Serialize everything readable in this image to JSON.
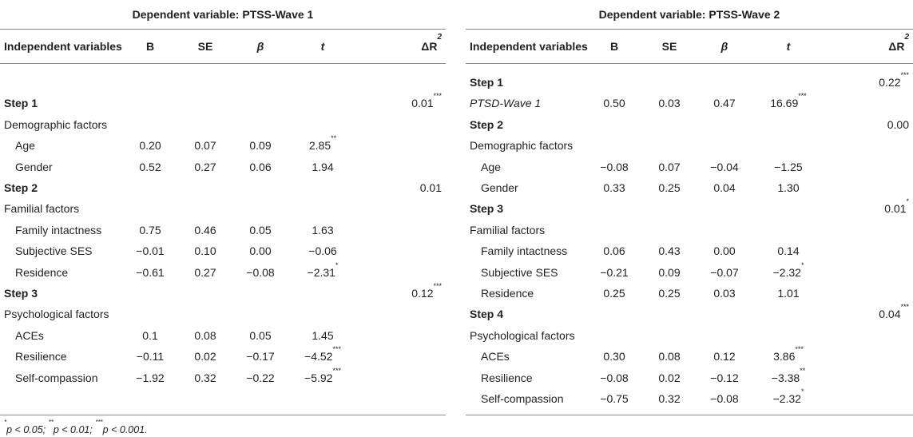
{
  "left": {
    "title": "Dependent variable: PTSS-Wave 1",
    "columns": {
      "iv": "Independent variables",
      "b": "B",
      "se": "SE",
      "beta": "β",
      "t": "t",
      "dr": "ΔR",
      "dr_sup": "2"
    },
    "rows": [
      {
        "type": "blank"
      },
      {
        "type": "step",
        "label": "Step 1",
        "dr": "0.01",
        "dr_sig": "***"
      },
      {
        "type": "group",
        "label": "Demographic factors"
      },
      {
        "type": "var",
        "label": "Age",
        "b": "0.20",
        "se": "0.07",
        "beta": "0.09",
        "t": "2.85",
        "t_sig": "**"
      },
      {
        "type": "var",
        "label": "Gender",
        "b": "0.52",
        "se": "0.27",
        "beta": "0.06",
        "t": "1.94",
        "t_sig": ""
      },
      {
        "type": "step",
        "label": "Step 2",
        "dr": "0.01",
        "dr_sig": ""
      },
      {
        "type": "group",
        "label": "Familial factors"
      },
      {
        "type": "var",
        "label": "Family intactness",
        "b": "0.75",
        "se": "0.46",
        "beta": "0.05",
        "t": "1.63",
        "t_sig": ""
      },
      {
        "type": "var",
        "label": "Subjective SES",
        "b": "−0.01",
        "se": "0.10",
        "beta": "0.00",
        "t": "−0.06",
        "t_sig": ""
      },
      {
        "type": "var",
        "label": "Residence",
        "b": "−0.61",
        "se": "0.27",
        "beta": "−0.08",
        "t": "−2.31",
        "t_sig": "*"
      },
      {
        "type": "step",
        "label": "Step 3",
        "dr": "0.12",
        "dr_sig": "***"
      },
      {
        "type": "group",
        "label": "Psychological factors"
      },
      {
        "type": "var",
        "label": "ACEs",
        "b": "0.1",
        "se": "0.08",
        "beta": "0.05",
        "t": "1.45",
        "t_sig": ""
      },
      {
        "type": "var",
        "label": "Resilience",
        "b": "−0.11",
        "se": "0.02",
        "beta": "−0.17",
        "t": "−4.52",
        "t_sig": "***"
      },
      {
        "type": "var",
        "label": "Self-compassion",
        "b": "−1.92",
        "se": "0.32",
        "beta": "−0.22",
        "t": "−5.92",
        "t_sig": "***"
      }
    ]
  },
  "right": {
    "title": "Dependent variable: PTSS-Wave 2",
    "columns": {
      "iv": "Independent variables",
      "b": "B",
      "se": "SE",
      "beta": "β",
      "t": "t",
      "dr": "ΔR",
      "dr_sup": "2"
    },
    "rows": [
      {
        "type": "step",
        "label": "Step 1",
        "dr": "0.22",
        "dr_sig": "***"
      },
      {
        "type": "var-italic",
        "label": "PTSD-Wave 1",
        "b": "0.50",
        "se": "0.03",
        "beta": "0.47",
        "t": "16.69",
        "t_sig": "***"
      },
      {
        "type": "step",
        "label": "Step 2",
        "dr": "0.00",
        "dr_sig": ""
      },
      {
        "type": "group",
        "label": "Demographic factors"
      },
      {
        "type": "var",
        "label": "Age",
        "b": "−0.08",
        "se": "0.07",
        "beta": "−0.04",
        "t": "−1.25",
        "t_sig": ""
      },
      {
        "type": "var",
        "label": "Gender",
        "b": "0.33",
        "se": "0.25",
        "beta": "0.04",
        "t": "1.30",
        "t_sig": ""
      },
      {
        "type": "step",
        "label": "Step 3",
        "dr": "0.01",
        "dr_sig": "*"
      },
      {
        "type": "group",
        "label": "Familial factors"
      },
      {
        "type": "var",
        "label": "Family intactness",
        "b": "0.06",
        "se": "0.43",
        "beta": "0.00",
        "t": "0.14",
        "t_sig": ""
      },
      {
        "type": "var",
        "label": "Subjective SES",
        "b": "−0.21",
        "se": "0.09",
        "beta": "−0.07",
        "t": "−2.32",
        "t_sig": "*"
      },
      {
        "type": "var",
        "label": "Residence",
        "b": "0.25",
        "se": "0.25",
        "beta": "0.03",
        "t": "1.01",
        "t_sig": ""
      },
      {
        "type": "step",
        "label": "Step 4",
        "dr": "0.04",
        "dr_sig": "***"
      },
      {
        "type": "group",
        "label": "Psychological factors"
      },
      {
        "type": "var",
        "label": "ACEs",
        "b": "0.30",
        "se": "0.08",
        "beta": "0.12",
        "t": "3.86",
        "t_sig": "***"
      },
      {
        "type": "var",
        "label": "Resilience",
        "b": "−0.08",
        "se": "0.02",
        "beta": "−0.12",
        "t": "−3.38",
        "t_sig": "**"
      },
      {
        "type": "var",
        "label": "Self-compassion",
        "b": "−0.75",
        "se": "0.32",
        "beta": "−0.08",
        "t": "−2.32",
        "t_sig": "*"
      }
    ]
  },
  "footnote": {
    "p1_sig": "*",
    "p1_text": "p < 0.05; ",
    "p2_sig": "**",
    "p2_text": "p < 0.01; ",
    "p3_sig": "***",
    "p3_text": "p < 0.001."
  }
}
